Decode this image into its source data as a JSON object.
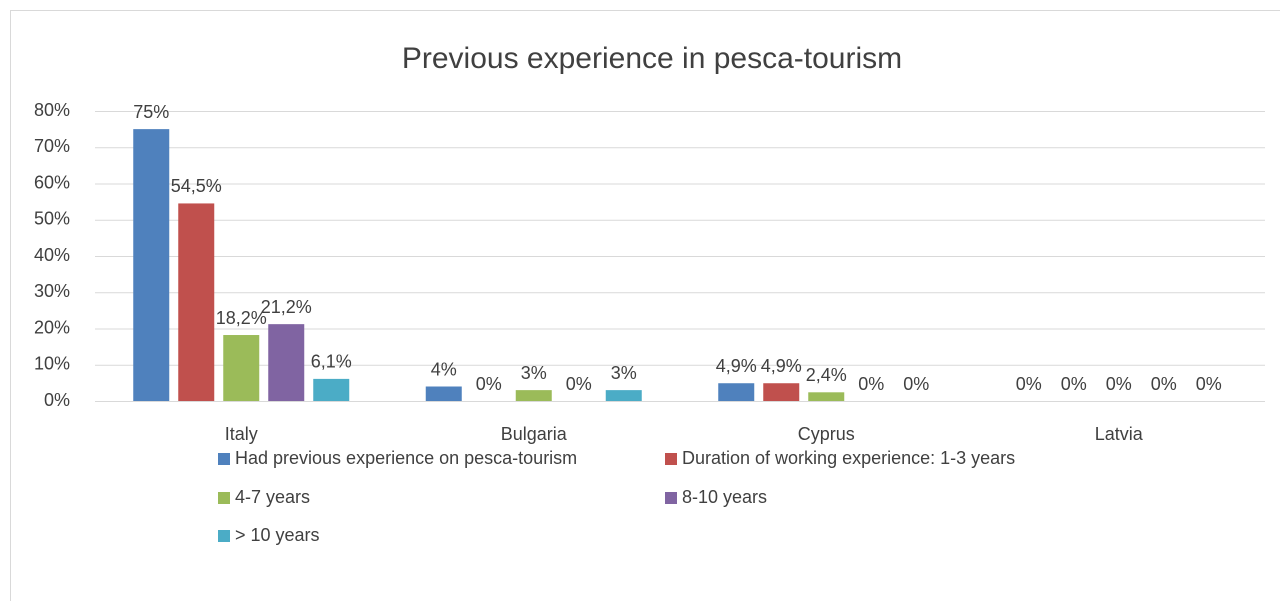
{
  "chart_data": {
    "type": "bar",
    "title": "Previous experience in pesca-tourism",
    "categories": [
      "Italy",
      "Bulgaria",
      "Cyprus",
      "Latvia"
    ],
    "series": [
      {
        "name": "Had previous experience on pesca-tourism",
        "color": "#4f81bd",
        "values": [
          75,
          4,
          4.9,
          0
        ],
        "value_labels": [
          "75%",
          "4%",
          "4,9%",
          "0%"
        ]
      },
      {
        "name": "Duration of working experience: 1-3 years",
        "color": "#c0504d",
        "values": [
          54.5,
          0,
          4.9,
          0
        ],
        "value_labels": [
          "54,5%",
          "0%",
          "4,9%",
          "0%"
        ]
      },
      {
        "name": "4-7 years",
        "color": "#9bbb59",
        "values": [
          18.2,
          3,
          2.4,
          0
        ],
        "value_labels": [
          "18,2%",
          "3%",
          "2,4%",
          "0%"
        ]
      },
      {
        "name": "8-10 years",
        "color": "#8064a2",
        "values": [
          21.2,
          0,
          0,
          0
        ],
        "value_labels": [
          "21,2%",
          "0%",
          "0%",
          "0%"
        ]
      },
      {
        "name": "> 10 years",
        "color": "#4bacc6",
        "values": [
          6.1,
          3,
          0,
          0
        ],
        "value_labels": [
          "6,1%",
          "3%",
          "0%",
          "0%"
        ]
      }
    ],
    "ylim": [
      0,
      80
    ],
    "yticks": [
      {
        "value": 0,
        "label": "0%"
      },
      {
        "value": 10,
        "label": "10%"
      },
      {
        "value": 20,
        "label": "20%"
      },
      {
        "value": 30,
        "label": "30%"
      },
      {
        "value": 40,
        "label": "40%"
      },
      {
        "value": 50,
        "label": "50%"
      },
      {
        "value": 60,
        "label": "60%"
      },
      {
        "value": 70,
        "label": "70%"
      },
      {
        "value": 80,
        "label": "80%"
      }
    ],
    "grid": true,
    "legend": "bottom"
  }
}
